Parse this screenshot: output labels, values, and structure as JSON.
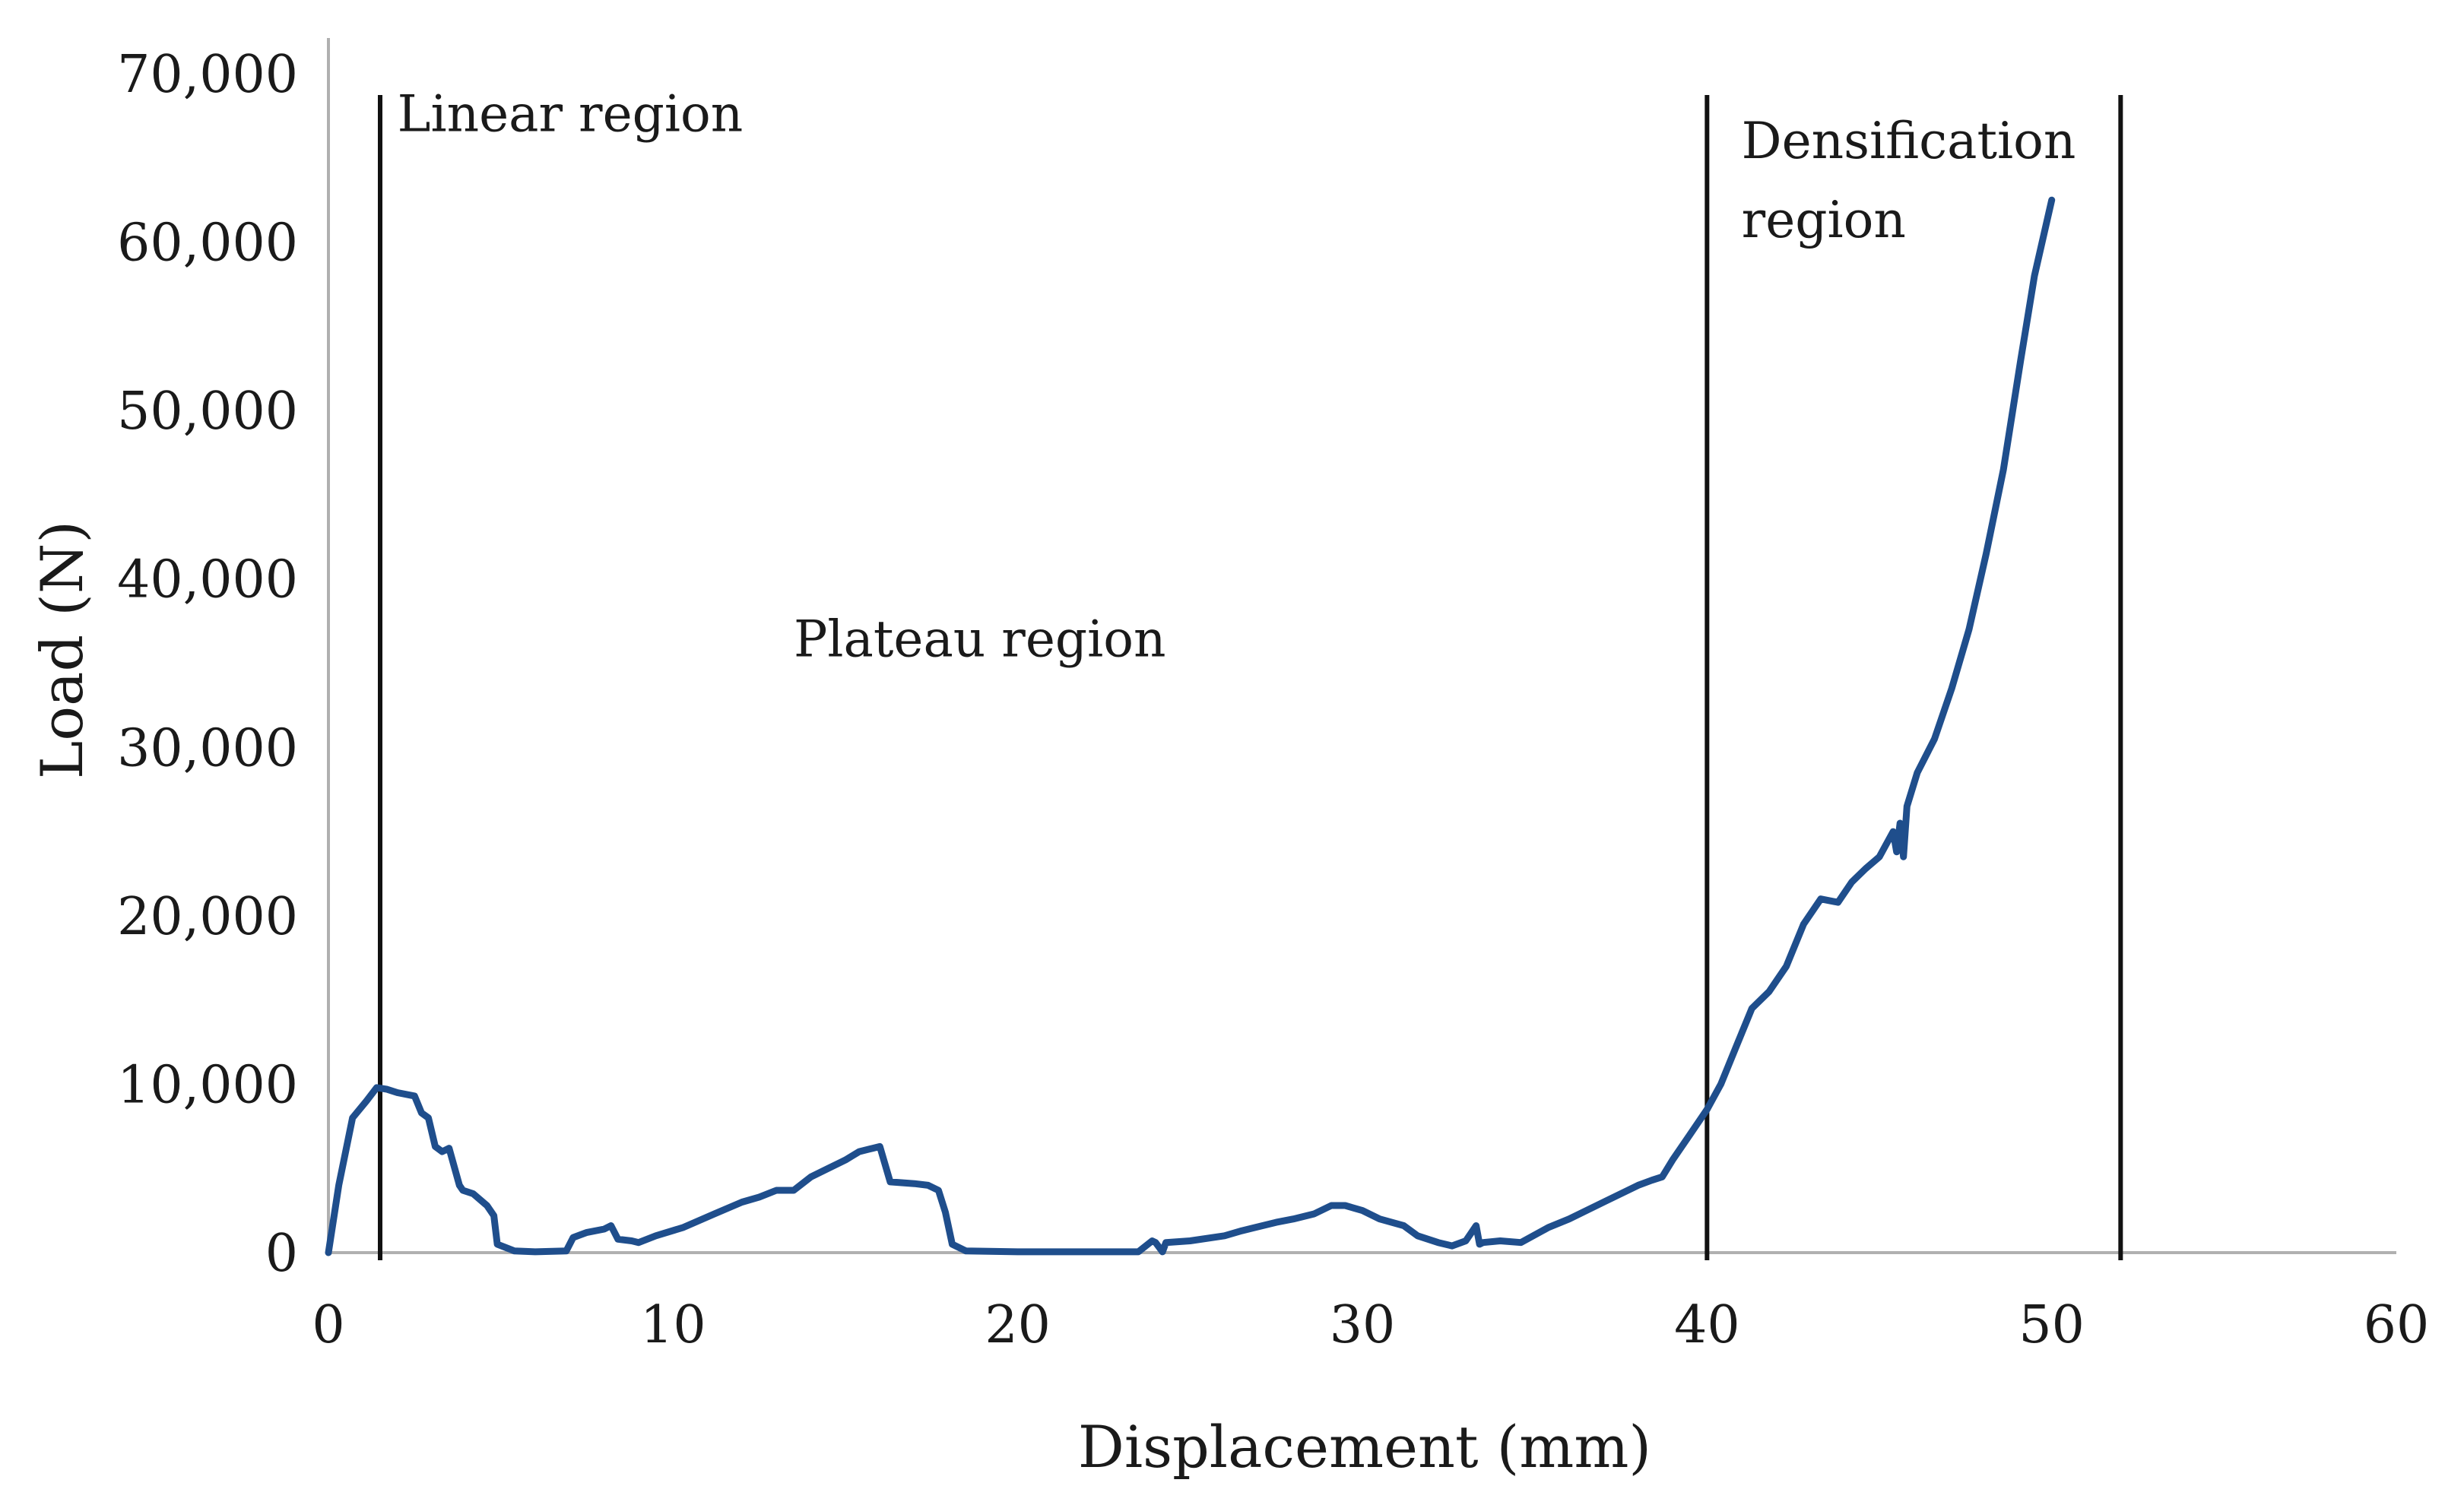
{
  "chart_data": {
    "type": "line",
    "title": "",
    "xlabel": "Displacement (mm)",
    "ylabel": "Load (N)",
    "xlim": [
      0,
      60
    ],
    "ylim": [
      0,
      70000
    ],
    "xticks": [
      0,
      10,
      20,
      30,
      40,
      50,
      60
    ],
    "yticks": [
      0,
      10000,
      20000,
      30000,
      40000,
      50000,
      60000,
      70000
    ],
    "xtick_labels": [
      "0",
      "10",
      "20",
      "30",
      "40",
      "50",
      "60"
    ],
    "ytick_labels": [
      "0",
      "10,000",
      "20,000",
      "30,000",
      "40,000",
      "50,000",
      "60,000",
      "70,000"
    ],
    "grid": false,
    "series": [
      {
        "name": "Load",
        "color": "#1f4e8c",
        "x": [
          0,
          0.3,
          0.7,
          1.1,
          1.4,
          1.7,
          2.0,
          2.5,
          2.7,
          2.9,
          3.1,
          3.3,
          3.5,
          3.8,
          3.9,
          4.2,
          4.6,
          4.8,
          4.9,
          5.4,
          6.0,
          6.9,
          7.1,
          7.5,
          8.0,
          8.2,
          8.4,
          8.8,
          9.0,
          9.5,
          10.3,
          11.2,
          12.0,
          12.5,
          13.0,
          13.5,
          14.0,
          14.5,
          15.0,
          15.4,
          15.8,
          16.0,
          16.3,
          17.0,
          17.4,
          17.7,
          17.9,
          18.1,
          18.5,
          20.0,
          22.0,
          23.5,
          23.9,
          24.0,
          24.2,
          24.3,
          25.0,
          26.0,
          26.5,
          27.5,
          28.0,
          28.6,
          29.1,
          29.5,
          30.0,
          30.5,
          31.2,
          31.6,
          32.2,
          32.6,
          33.0,
          33.2,
          33.3,
          33.4,
          33.5,
          34.0,
          34.6,
          35.4,
          36.0,
          37.0,
          38.0,
          38.4,
          38.7,
          39.0,
          39.5,
          40.0,
          40.4,
          40.9,
          41.3,
          41.8,
          42.3,
          42.8,
          43.3,
          43.8,
          44.2,
          44.6,
          45.0,
          45.4,
          45.5,
          45.6,
          45.7,
          45.8,
          46.1,
          46.6,
          47.1,
          47.6,
          48.1,
          48.6,
          49.1,
          49.5,
          50.0
        ],
        "y": [
          0,
          4000,
          8000,
          9000,
          9800,
          9700,
          9500,
          9300,
          8300,
          8000,
          6300,
          6000,
          6200,
          4000,
          3700,
          3500,
          2800,
          2200,
          500,
          100,
          50,
          100,
          900,
          1200,
          1400,
          1600,
          800,
          700,
          600,
          1000,
          1500,
          2300,
          3000,
          3300,
          3700,
          3700,
          4500,
          5000,
          5500,
          6000,
          6200,
          6300,
          4200,
          4100,
          4000,
          3700,
          2400,
          500,
          100,
          50,
          50,
          50,
          700,
          600,
          50,
          600,
          700,
          1000,
          1300,
          1800,
          2000,
          2300,
          2800,
          2800,
          2500,
          2000,
          1600,
          1000,
          600,
          400,
          700,
          1300,
          1600,
          500,
          600,
          700,
          600,
          1500,
          2000,
          3000,
          4000,
          4300,
          4500,
          5500,
          7000,
          8500,
          10000,
          12500,
          14500,
          15500,
          17000,
          19500,
          21000,
          20800,
          22000,
          22800,
          23500,
          25000,
          23800,
          25500,
          23500,
          26500,
          28500,
          30500,
          33500,
          37000,
          41500,
          46500,
          53000,
          58000,
          62500
        ]
      }
    ],
    "vertical_lines": [
      1.5,
      40,
      52
    ],
    "annotations": [
      {
        "text": "Linear region",
        "x": 2.0,
        "y": 66600
      },
      {
        "text": "Plateau region",
        "x": 13.5,
        "y": 35400
      },
      {
        "text": "Densification",
        "x": 41.0,
        "y": 65000
      },
      {
        "text": "region",
        "x": 41.0,
        "y": 60300
      }
    ]
  }
}
